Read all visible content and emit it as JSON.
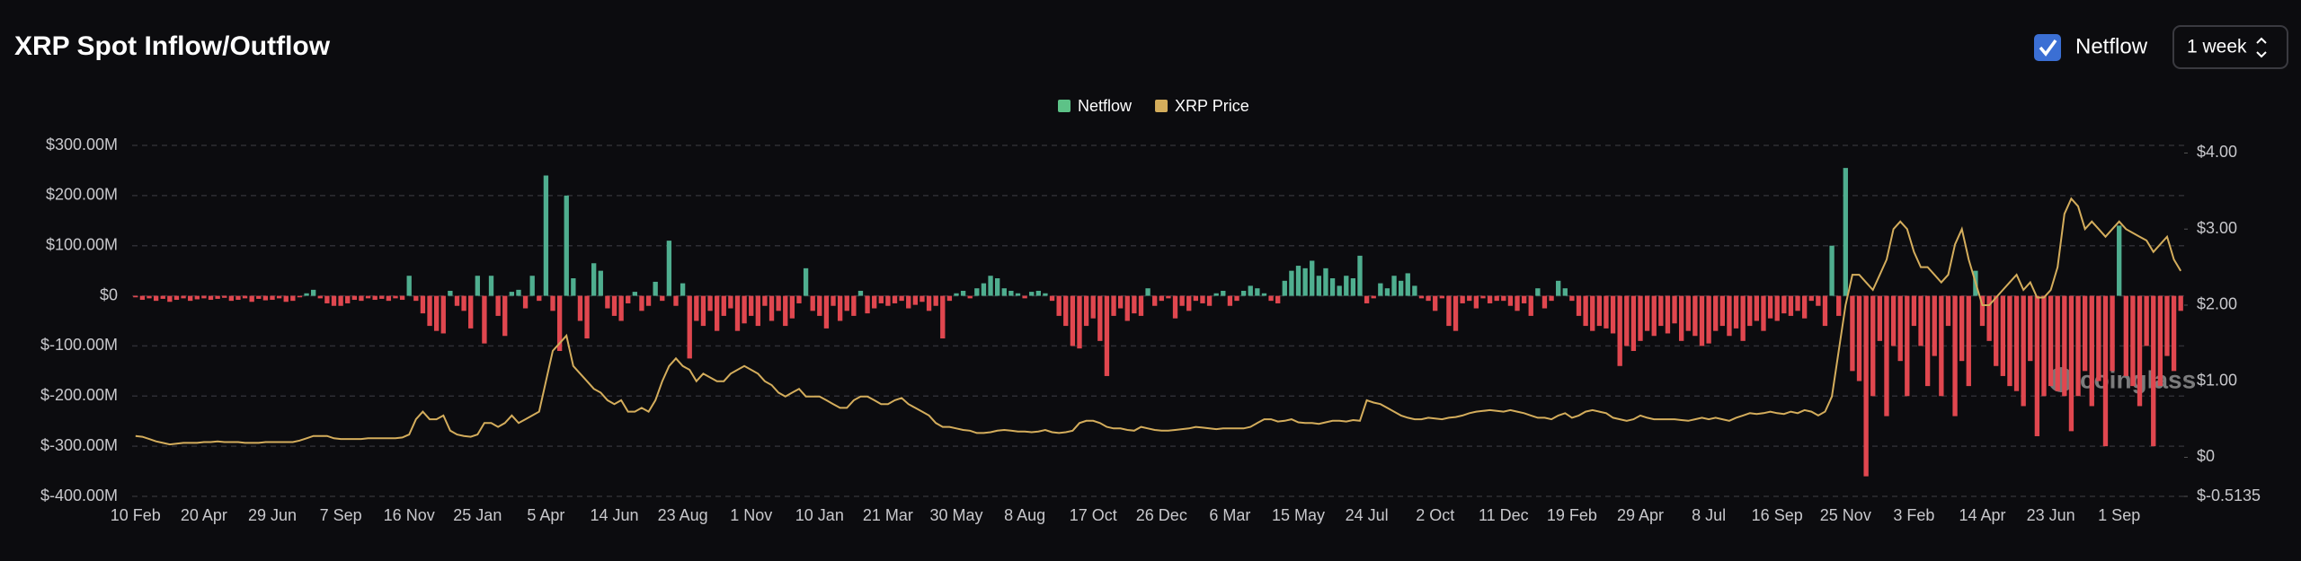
{
  "chart_data": {
    "type": "bar",
    "title": "XRP Spot Inflow/Outflow",
    "categories": [
      "10 Feb",
      null,
      null,
      null,
      null,
      null,
      null,
      null,
      null,
      null,
      "20 Apr",
      null,
      null,
      null,
      null,
      null,
      null,
      null,
      null,
      null,
      "29 Jun",
      null,
      null,
      null,
      null,
      null,
      null,
      null,
      null,
      null,
      "7 Sep",
      null,
      null,
      null,
      null,
      null,
      null,
      null,
      null,
      null,
      "16 Nov",
      null,
      null,
      null,
      null,
      null,
      null,
      null,
      null,
      null,
      "25 Jan",
      null,
      null,
      null,
      null,
      null,
      null,
      null,
      null,
      null,
      "5 Apr",
      null,
      null,
      null,
      null,
      null,
      null,
      null,
      null,
      null,
      "14 Jun",
      null,
      null,
      null,
      null,
      null,
      null,
      null,
      null,
      null,
      "23 Aug",
      null,
      null,
      null,
      null,
      null,
      null,
      null,
      null,
      null,
      "1 Nov",
      null,
      null,
      null,
      null,
      null,
      null,
      null,
      null,
      null,
      "10 Jan",
      null,
      null,
      null,
      null,
      null,
      null,
      null,
      null,
      null,
      "21 Mar",
      null,
      null,
      null,
      null,
      null,
      null,
      null,
      null,
      null,
      "30 May",
      null,
      null,
      null,
      null,
      null,
      null,
      null,
      null,
      null,
      "8 Aug",
      null,
      null,
      null,
      null,
      null,
      null,
      null,
      null,
      null,
      "17 Oct",
      null,
      null,
      null,
      null,
      null,
      null,
      null,
      null,
      null,
      "26 Dec",
      null,
      null,
      null,
      null,
      null,
      null,
      null,
      null,
      null,
      "6 Mar",
      null,
      null,
      null,
      null,
      null,
      null,
      null,
      null,
      null,
      "15 May",
      null,
      null,
      null,
      null,
      null,
      null,
      null,
      null,
      null,
      "24 Jul",
      null,
      null,
      null,
      null,
      null,
      null,
      null,
      null,
      null,
      "2 Oct",
      null,
      null,
      null,
      null,
      null,
      null,
      null,
      null,
      null,
      "11 Dec",
      null,
      null,
      null,
      null,
      null,
      null,
      null,
      null,
      null,
      "19 Feb",
      null,
      null,
      null,
      null,
      null,
      null,
      null,
      null,
      null,
      "29 Apr",
      null,
      null,
      null,
      null,
      null,
      null,
      null,
      null,
      null,
      "8 Jul",
      null,
      null,
      null,
      null,
      null,
      null,
      null,
      null,
      null,
      "16 Sep",
      null,
      null,
      null,
      null,
      null,
      null,
      null,
      null,
      null,
      "25 Nov",
      null,
      null,
      null,
      null,
      null,
      null,
      null,
      null,
      null,
      "3 Feb",
      null,
      null,
      null,
      null,
      null,
      null,
      null,
      null,
      null,
      "14 Apr",
      null,
      null,
      null,
      null,
      null,
      null,
      null,
      null,
      null,
      "23 Jun",
      null,
      null,
      null,
      null,
      null,
      null,
      null,
      null,
      null,
      "1 Sep",
      null,
      null,
      null,
      null,
      null,
      null,
      null,
      null,
      null
    ],
    "series": [
      {
        "name": "Netflow",
        "type": "bar",
        "color": "#4fae8f",
        "negative_color": "#e0474f",
        "legend_color": "#5dc287",
        "values": [
          -3,
          -8,
          -5,
          -10,
          -6,
          -12,
          -8,
          -5,
          -10,
          -7,
          -5,
          -8,
          -6,
          -4,
          -10,
          -8,
          -5,
          -12,
          -6,
          -9,
          -8,
          -5,
          -12,
          -10,
          -3,
          5,
          12,
          -5,
          -15,
          -20,
          -20,
          -15,
          -8,
          -10,
          -5,
          -8,
          -6,
          -10,
          -5,
          -8,
          40,
          -10,
          -35,
          -60,
          -70,
          -75,
          10,
          -20,
          -30,
          -65,
          40,
          -95,
          40,
          -40,
          -80,
          8,
          12,
          -25,
          40,
          -10,
          240,
          -30,
          -110,
          200,
          35,
          -50,
          -85,
          65,
          50,
          -25,
          -40,
          -50,
          -15,
          8,
          -30,
          -20,
          28,
          -10,
          110,
          -20,
          25,
          -125,
          -50,
          -60,
          -30,
          -70,
          -40,
          -25,
          -70,
          -55,
          -40,
          -60,
          -20,
          -50,
          -30,
          -60,
          -45,
          -15,
          55,
          -30,
          -40,
          -65,
          -20,
          -50,
          -30,
          -40,
          10,
          -35,
          -25,
          -15,
          -20,
          -15,
          -10,
          -25,
          -18,
          -12,
          -30,
          -20,
          -85,
          -10,
          5,
          10,
          -5,
          15,
          25,
          40,
          35,
          15,
          10,
          5,
          -5,
          8,
          10,
          5,
          -10,
          -40,
          -60,
          -100,
          -105,
          -60,
          -45,
          -90,
          -160,
          -40,
          -25,
          -50,
          -35,
          -40,
          15,
          -20,
          -10,
          -5,
          -45,
          -20,
          -30,
          -10,
          -15,
          -20,
          5,
          10,
          -20,
          -10,
          10,
          20,
          15,
          5,
          -10,
          -15,
          30,
          50,
          60,
          55,
          70,
          40,
          55,
          35,
          20,
          40,
          35,
          80,
          -15,
          -5,
          25,
          15,
          40,
          30,
          45,
          20,
          -5,
          -10,
          -30,
          -5,
          -60,
          -70,
          -15,
          -10,
          -25,
          -5,
          -15,
          -10,
          -10,
          -20,
          -30,
          -15,
          -40,
          15,
          -25,
          -10,
          30,
          15,
          -10,
          -40,
          -60,
          -70,
          -60,
          -65,
          -75,
          -140,
          -100,
          -110,
          -90,
          -70,
          -80,
          -60,
          -75,
          -55,
          -90,
          -70,
          -80,
          -100,
          -95,
          -70,
          -60,
          -80,
          -65,
          -90,
          -60,
          -50,
          -70,
          -45,
          -50,
          -35,
          -40,
          -30,
          -45,
          -10,
          -20,
          -60,
          100,
          -40,
          255,
          -150,
          -170,
          -360,
          -200,
          -90,
          -240,
          -100,
          -130,
          -200,
          -60,
          -100,
          -180,
          -120,
          -200,
          -60,
          -240,
          -130,
          -180,
          50,
          -60,
          -90,
          -140,
          -160,
          -180,
          -190,
          -220,
          -130,
          -280,
          -200,
          -180,
          -190,
          -200,
          -270,
          -200,
          -150,
          -220,
          -170,
          -300,
          -150,
          140,
          -160,
          -180,
          -220,
          -100,
          -300,
          -180,
          -120,
          -150,
          -30
        ]
      },
      {
        "name": "XRP Price",
        "type": "line",
        "axis": "y2",
        "color": "#d4ad5c",
        "values": [
          0.28,
          0.27,
          0.24,
          0.21,
          0.19,
          0.17,
          0.18,
          0.19,
          0.19,
          0.19,
          0.2,
          0.2,
          0.21,
          0.2,
          0.2,
          0.2,
          0.19,
          0.19,
          0.19,
          0.2,
          0.2,
          0.2,
          0.2,
          0.2,
          0.22,
          0.25,
          0.28,
          0.28,
          0.28,
          0.25,
          0.24,
          0.24,
          0.24,
          0.24,
          0.25,
          0.25,
          0.25,
          0.25,
          0.25,
          0.26,
          0.3,
          0.5,
          0.6,
          0.5,
          0.5,
          0.55,
          0.35,
          0.3,
          0.28,
          0.27,
          0.3,
          0.45,
          0.45,
          0.4,
          0.45,
          0.55,
          0.45,
          0.5,
          0.55,
          0.6,
          1.0,
          1.4,
          1.5,
          1.6,
          1.2,
          1.1,
          1.0,
          0.9,
          0.85,
          0.75,
          0.7,
          0.75,
          0.6,
          0.6,
          0.65,
          0.6,
          0.75,
          1.0,
          1.2,
          1.3,
          1.2,
          1.15,
          1.0,
          1.1,
          1.05,
          1.0,
          1.0,
          1.1,
          1.15,
          1.2,
          1.15,
          1.1,
          1.0,
          0.95,
          0.85,
          0.8,
          0.85,
          0.9,
          0.8,
          0.8,
          0.8,
          0.75,
          0.7,
          0.65,
          0.65,
          0.75,
          0.8,
          0.8,
          0.75,
          0.7,
          0.7,
          0.75,
          0.78,
          0.7,
          0.65,
          0.6,
          0.55,
          0.45,
          0.4,
          0.4,
          0.38,
          0.36,
          0.35,
          0.32,
          0.32,
          0.33,
          0.35,
          0.36,
          0.35,
          0.34,
          0.34,
          0.33,
          0.34,
          0.36,
          0.33,
          0.32,
          0.33,
          0.35,
          0.45,
          0.48,
          0.48,
          0.45,
          0.4,
          0.38,
          0.38,
          0.36,
          0.35,
          0.4,
          0.38,
          0.36,
          0.35,
          0.35,
          0.36,
          0.37,
          0.38,
          0.4,
          0.39,
          0.38,
          0.37,
          0.38,
          0.38,
          0.38,
          0.38,
          0.4,
          0.45,
          0.5,
          0.5,
          0.47,
          0.48,
          0.5,
          0.46,
          0.45,
          0.45,
          0.44,
          0.46,
          0.48,
          0.48,
          0.47,
          0.49,
          0.48,
          0.75,
          0.72,
          0.7,
          0.65,
          0.6,
          0.55,
          0.52,
          0.5,
          0.5,
          0.52,
          0.51,
          0.5,
          0.52,
          0.53,
          0.55,
          0.58,
          0.6,
          0.61,
          0.62,
          0.61,
          0.6,
          0.62,
          0.6,
          0.58,
          0.55,
          0.52,
          0.52,
          0.5,
          0.55,
          0.58,
          0.52,
          0.55,
          0.6,
          0.62,
          0.6,
          0.58,
          0.52,
          0.5,
          0.48,
          0.5,
          0.55,
          0.52,
          0.5,
          0.5,
          0.5,
          0.5,
          0.49,
          0.48,
          0.5,
          0.52,
          0.5,
          0.52,
          0.5,
          0.48,
          0.52,
          0.55,
          0.58,
          0.57,
          0.58,
          0.6,
          0.58,
          0.57,
          0.6,
          0.58,
          0.62,
          0.6,
          0.55,
          0.6,
          0.8,
          1.4,
          2.0,
          2.4,
          2.4,
          2.3,
          2.2,
          2.4,
          2.6,
          3.0,
          3.1,
          3.0,
          2.7,
          2.5,
          2.5,
          2.4,
          2.3,
          2.4,
          2.8,
          3.0,
          2.6,
          2.3,
          2.0,
          2.0,
          2.1,
          2.2,
          2.3,
          2.4,
          2.2,
          2.3,
          2.1,
          2.1,
          2.2,
          2.5,
          3.2,
          3.4,
          3.3,
          3.0,
          3.1,
          3.0,
          2.9,
          3.0,
          3.1,
          3.0,
          2.95,
          2.9,
          2.85,
          2.7,
          2.8,
          2.9,
          2.6,
          2.45
        ]
      }
    ],
    "ylim": [
      -400,
      300
    ],
    "yticks": [
      {
        "value": -400,
        "label": "$-400.00M"
      },
      {
        "value": -300,
        "label": "$-300.00M"
      },
      {
        "value": -200,
        "label": "$-200.00M"
      },
      {
        "value": -100,
        "label": "$-100.00M"
      },
      {
        "value": 0,
        "label": "$0"
      },
      {
        "value": 100,
        "label": "$100.00M"
      },
      {
        "value": 200,
        "label": "$200.00M"
      },
      {
        "value": 300,
        "label": "$300.00M"
      }
    ],
    "y2lim": [
      -0.5135,
      4.1
    ],
    "y2ticks": [
      {
        "value": -0.5135,
        "label": "$-0.5135"
      },
      {
        "value": 0,
        "label": "$0"
      },
      {
        "value": 1,
        "label": "$1.00"
      },
      {
        "value": 2,
        "label": "$2.00"
      },
      {
        "value": 3,
        "label": "$3.00"
      },
      {
        "value": 4,
        "label": "$4.00"
      }
    ],
    "grid": true,
    "legend": "top"
  },
  "controls": {
    "checkbox_label": "Netflow",
    "checked": true,
    "period": "1 week"
  },
  "watermark": "coinglass"
}
